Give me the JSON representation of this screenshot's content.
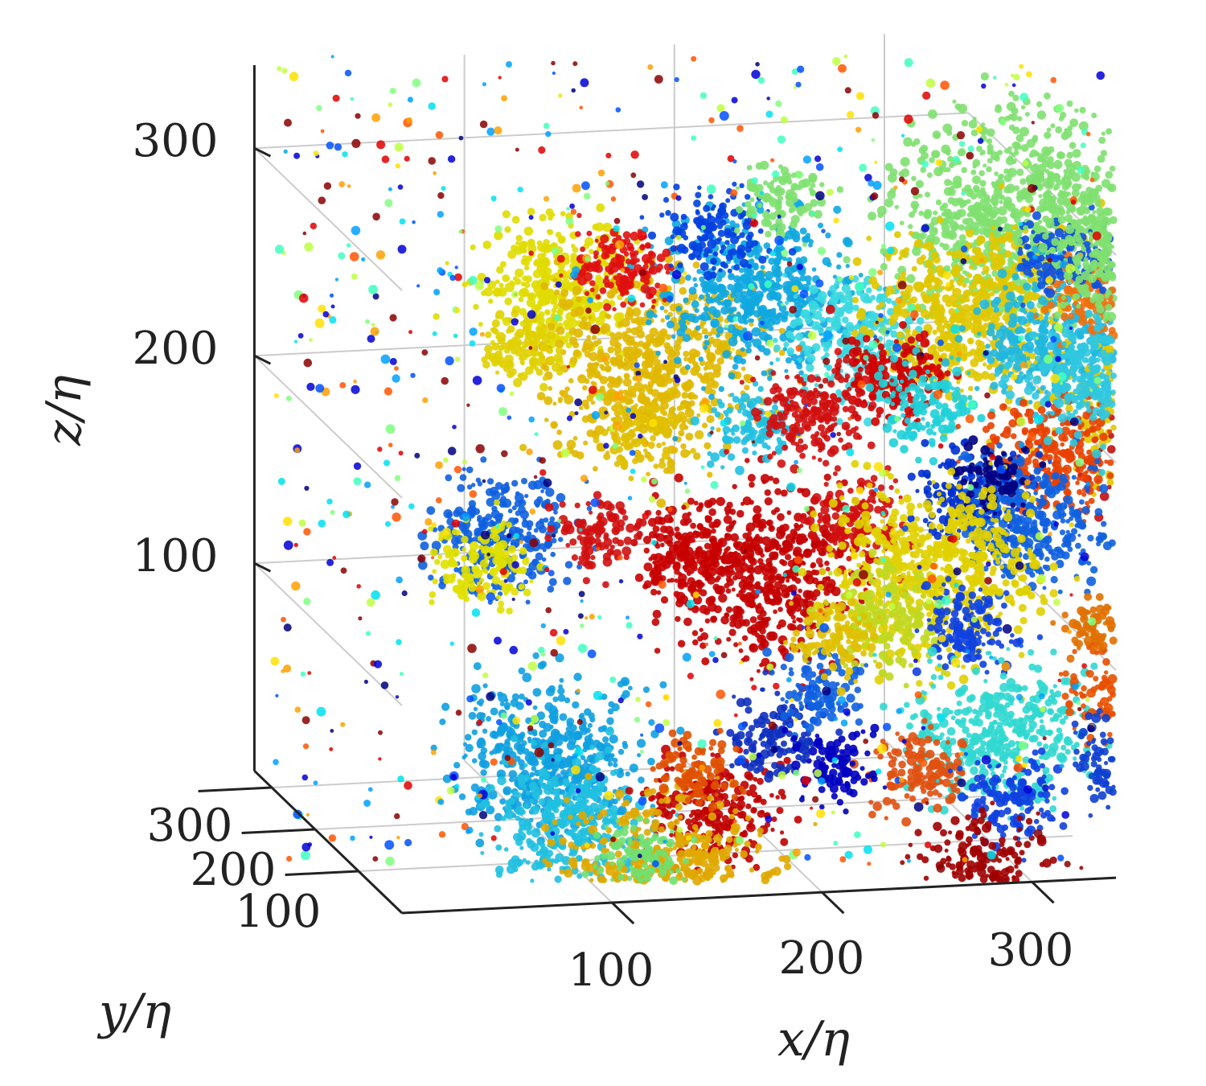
{
  "chart_data": {
    "type": "scatter",
    "projection": "3d",
    "xlabel": "x/η",
    "ylabel": "y/η",
    "zlabel": "z/η",
    "xlim": [
      0,
      340
    ],
    "ylim": [
      0,
      340
    ],
    "zlim": [
      0,
      340
    ],
    "xticks": [
      "100",
      "200",
      "300"
    ],
    "yticks": [
      "100",
      "200",
      "300"
    ],
    "zticks": [
      "100",
      "200",
      "300"
    ],
    "grid": true,
    "colormap": [
      "#00007f",
      "#0000d6",
      "#0050ff",
      "#00a0ff",
      "#00e0f0",
      "#3fffc0",
      "#80ff80",
      "#c0ff40",
      "#ffe000",
      "#ffa000",
      "#ff5500",
      "#e00000",
      "#8b0000"
    ],
    "clusters": [
      {
        "x": 75,
        "y": 200,
        "z": 300,
        "color": "#e0dc00",
        "size": 2.2
      },
      {
        "x": 120,
        "y": 200,
        "z": 255,
        "color": "#e0b800",
        "size": 3
      },
      {
        "x": 170,
        "y": 200,
        "z": 290,
        "color": "#10a8e0",
        "size": 2.6
      },
      {
        "x": 215,
        "y": 200,
        "z": 265,
        "color": "#3ad8e0",
        "size": 2
      },
      {
        "x": 105,
        "y": 200,
        "z": 305,
        "color": "#e01010",
        "size": 1.4
      },
      {
        "x": 150,
        "y": 200,
        "z": 320,
        "color": "#0040e0",
        "size": 1.4
      },
      {
        "x": 180,
        "y": 200,
        "z": 335,
        "color": "#80e070",
        "size": 1.2
      },
      {
        "x": 290,
        "y": 200,
        "z": 320,
        "color": "#80e070",
        "size": 3.4
      },
      {
        "x": 275,
        "y": 200,
        "z": 275,
        "color": "#e0c800",
        "size": 2.8
      },
      {
        "x": 310,
        "y": 200,
        "z": 260,
        "color": "#20b8e0",
        "size": 2.2
      },
      {
        "x": 330,
        "y": 200,
        "z": 280,
        "color": "#f07010",
        "size": 1.4
      },
      {
        "x": 315,
        "y": 200,
        "z": 300,
        "color": "#1050e0",
        "size": 1.4
      },
      {
        "x": 345,
        "y": 200,
        "z": 305,
        "color": "#80e070",
        "size": 2.4
      },
      {
        "x": 235,
        "y": 200,
        "z": 245,
        "color": "#d00000",
        "size": 1.6
      },
      {
        "x": 250,
        "y": 200,
        "z": 230,
        "color": "#20d0d8",
        "size": 1.4
      },
      {
        "x": 360,
        "y": 200,
        "z": 220,
        "color": "#e0c800",
        "size": 2.6
      },
      {
        "x": 365,
        "y": 200,
        "z": 190,
        "color": "#c01010",
        "size": 1.8
      },
      {
        "x": 380,
        "y": 200,
        "z": 170,
        "color": "#c00000",
        "size": 1.4
      },
      {
        "x": 385,
        "y": 200,
        "z": 215,
        "color": "#30b8e0",
        "size": 1.2
      },
      {
        "x": 310,
        "y": 200,
        "z": 205,
        "color": "#e84000",
        "size": 2
      },
      {
        "x": 270,
        "y": 200,
        "z": 185,
        "color": "#0030d0",
        "size": 1.6
      },
      {
        "x": 300,
        "y": 200,
        "z": 175,
        "color": "#1060e0",
        "size": 2.2
      },
      {
        "x": 330,
        "y": 200,
        "z": 240,
        "color": "#30c8e0",
        "size": 2
      },
      {
        "x": 280,
        "y": 200,
        "z": 195,
        "color": "#00007f",
        "size": 1
      },
      {
        "x": 175,
        "y": 200,
        "z": 155,
        "color": "#c40000",
        "size": 2.8
      },
      {
        "x": 140,
        "y": 200,
        "z": 165,
        "color": "#c80000",
        "size": 1.6
      },
      {
        "x": 215,
        "y": 200,
        "z": 180,
        "color": "#d01010",
        "size": 1.4
      },
      {
        "x": 255,
        "y": 200,
        "z": 150,
        "color": "#e0d000",
        "size": 3
      },
      {
        "x": 230,
        "y": 200,
        "z": 130,
        "color": "#c0d820",
        "size": 1.6
      },
      {
        "x": 270,
        "y": 200,
        "z": 125,
        "color": "#1040e0",
        "size": 1.4
      },
      {
        "x": 50,
        "y": 200,
        "z": 180,
        "color": "#1060e0",
        "size": 2
      },
      {
        "x": 40,
        "y": 200,
        "z": 165,
        "color": "#e0e000",
        "size": 1.4
      },
      {
        "x": 95,
        "y": 200,
        "z": 180,
        "color": "#d01010",
        "size": 1.2
      },
      {
        "x": 70,
        "y": 200,
        "z": 70,
        "color": "#10a0e0",
        "size": 2.6
      },
      {
        "x": 80,
        "y": 200,
        "z": 40,
        "color": "#20c0e0",
        "size": 2.2
      },
      {
        "x": 150,
        "y": 200,
        "z": 40,
        "color": "#c00000",
        "size": 1.8
      },
      {
        "x": 175,
        "y": 200,
        "z": 75,
        "color": "#1030c0",
        "size": 1.4
      },
      {
        "x": 125,
        "y": 200,
        "z": 5,
        "color": "#e0a800",
        "size": 3
      },
      {
        "x": 115,
        "y": 200,
        "z": 20,
        "color": "#70e070",
        "size": 1.2
      },
      {
        "x": 140,
        "y": 200,
        "z": 60,
        "color": "#e05000",
        "size": 1.2
      },
      {
        "x": 285,
        "y": 200,
        "z": 70,
        "color": "#30d8d0",
        "size": 2.4
      },
      {
        "x": 245,
        "y": 200,
        "z": 55,
        "color": "#e05010",
        "size": 1.4
      },
      {
        "x": 290,
        "y": 200,
        "z": 40,
        "color": "#1040e0",
        "size": 1.4
      },
      {
        "x": 275,
        "y": 200,
        "z": 5,
        "color": "#a00000",
        "size": 1.8
      },
      {
        "x": 345,
        "y": 200,
        "z": 90,
        "color": "#e85000",
        "size": 1.6
      },
      {
        "x": 340,
        "y": 200,
        "z": 55,
        "color": "#1040d0",
        "size": 1.4
      },
      {
        "x": 330,
        "y": 200,
        "z": 120,
        "color": "#e07000",
        "size": 1
      },
      {
        "x": 200,
        "y": 200,
        "z": 95,
        "color": "#1060e0",
        "size": 1.2
      },
      {
        "x": 205,
        "y": 200,
        "z": 60,
        "color": "#0000c0",
        "size": 1.2
      },
      {
        "x": 115,
        "y": 200,
        "z": 225,
        "color": "#e0c000",
        "size": 1.2
      },
      {
        "x": 165,
        "y": 200,
        "z": 225,
        "color": "#20c0e0",
        "size": 1.2
      },
      {
        "x": 195,
        "y": 200,
        "z": 230,
        "color": "#d01010",
        "size": 1.6
      },
      {
        "x": 60,
        "y": 200,
        "z": 270,
        "color": "#e0d000",
        "size": 1.2
      },
      {
        "x": 380,
        "y": 200,
        "z": 130,
        "color": "#30b8e0",
        "size": 1.2
      },
      {
        "x": 205,
        "y": 200,
        "z": 120,
        "color": "#e0c000",
        "size": 1.2
      }
    ]
  }
}
